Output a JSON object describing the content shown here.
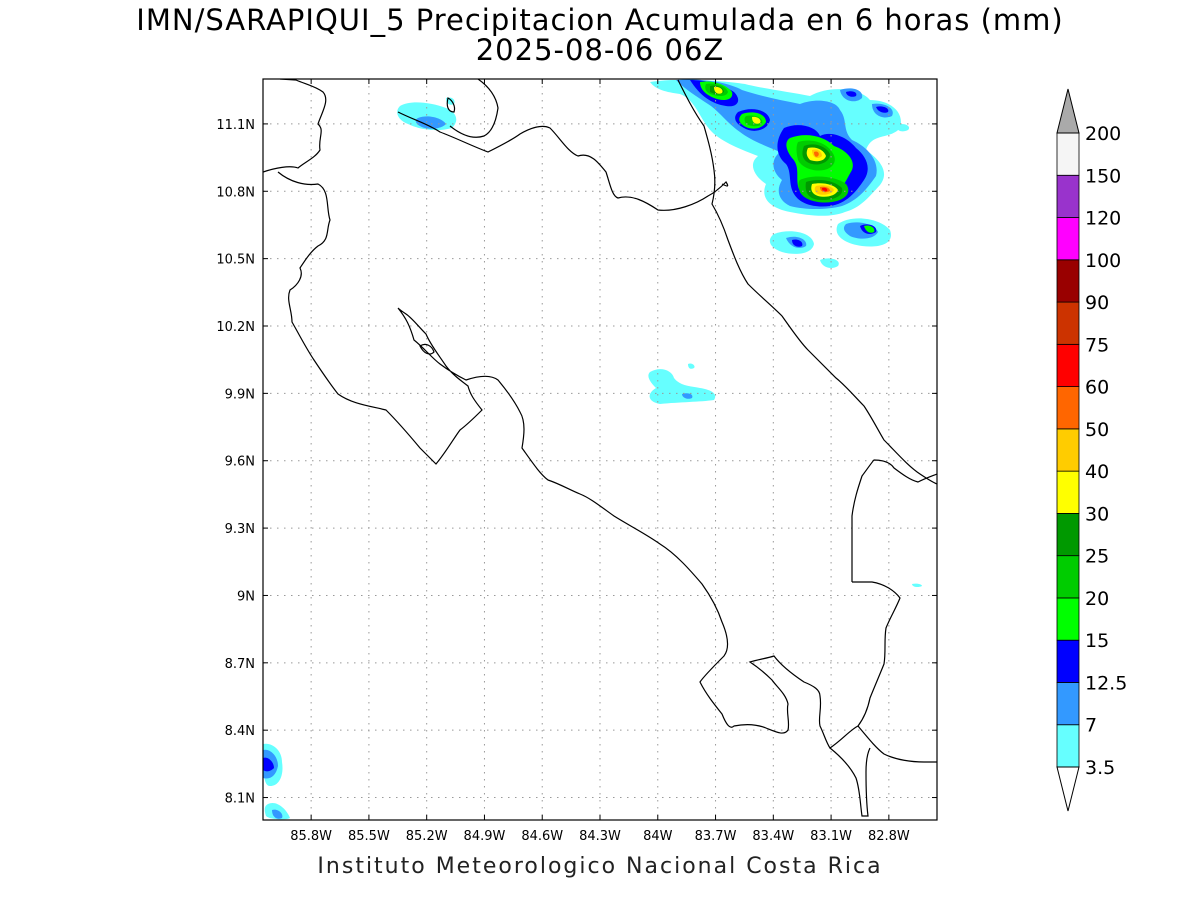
{
  "title": {
    "line1": "IMN/SARAPIQUI_5 Precipitacion Acumulada en 6 horas (mm)",
    "line2": "2025-08-06 06Z"
  },
  "footer": "Instituto Meteorologico Nacional Costa Rica",
  "map": {
    "lon_range": [
      -86.05,
      -82.55
    ],
    "lat_range": [
      8.0,
      11.3
    ],
    "lon_ticks": [
      {
        "value": -85.8,
        "label": "85.8W"
      },
      {
        "value": -85.5,
        "label": "85.5W"
      },
      {
        "value": -85.2,
        "label": "85.2W"
      },
      {
        "value": -84.9,
        "label": "84.9W"
      },
      {
        "value": -84.6,
        "label": "84.6W"
      },
      {
        "value": -84.3,
        "label": "84.3W"
      },
      {
        "value": -84.0,
        "label": "84W"
      },
      {
        "value": -83.7,
        "label": "83.7W"
      },
      {
        "value": -83.4,
        "label": "83.4W"
      },
      {
        "value": -83.1,
        "label": "83.1W"
      },
      {
        "value": -82.8,
        "label": "82.8W"
      }
    ],
    "lat_ticks": [
      {
        "value": 11.1,
        "label": "11.1N"
      },
      {
        "value": 10.8,
        "label": "10.8N"
      },
      {
        "value": 10.5,
        "label": "10.5N"
      },
      {
        "value": 10.2,
        "label": "10.2N"
      },
      {
        "value": 9.9,
        "label": "9.9N"
      },
      {
        "value": 9.6,
        "label": "9.6N"
      },
      {
        "value": 9.3,
        "label": "9.3N"
      },
      {
        "value": 9.0,
        "label": "9N"
      },
      {
        "value": 8.7,
        "label": "8.7N"
      },
      {
        "value": 8.4,
        "label": "8.4N"
      },
      {
        "value": 8.1,
        "label": "8.1N"
      }
    ],
    "grid": "dotted"
  },
  "colorbar": {
    "unit": "mm",
    "levels": [
      {
        "label": "3.5",
        "color": "#66ffff"
      },
      {
        "label": "7",
        "color": "#3399ff"
      },
      {
        "label": "12.5",
        "color": "#0000ff"
      },
      {
        "label": "15",
        "color": "#00ff00"
      },
      {
        "label": "20",
        "color": "#00cc00"
      },
      {
        "label": "25",
        "color": "#009900"
      },
      {
        "label": "30",
        "color": "#ffff00"
      },
      {
        "label": "40",
        "color": "#ffcc00"
      },
      {
        "label": "50",
        "color": "#ff6600"
      },
      {
        "label": "60",
        "color": "#ff0000"
      },
      {
        "label": "75",
        "color": "#cc3300"
      },
      {
        "label": "90",
        "color": "#990000"
      },
      {
        "label": "100",
        "color": "#ff00ff"
      },
      {
        "label": "120",
        "color": "#9933cc"
      },
      {
        "label": "150",
        "color": "#f5f5f5"
      },
      {
        "label": "200",
        "color": "#aaaaaa"
      }
    ],
    "colors_between_labels": [
      "#66ffff",
      "#3399ff",
      "#0000ff",
      "#00ff00",
      "#00cc00",
      "#009900",
      "#ffff00",
      "#ffcc00",
      "#ff6600",
      "#ff0000",
      "#cc3300",
      "#990000",
      "#ff00ff",
      "#9933cc",
      "#f5f5f5"
    ],
    "below_min_color": "#ffffff",
    "above_max_color": "#aaaaaa"
  },
  "precip_cells": [
    {
      "lon": -83.15,
      "lat": 10.96,
      "peak_mm": 60
    },
    {
      "lon": -83.1,
      "lat": 10.8,
      "peak_mm": 75
    },
    {
      "lon": -83.58,
      "lat": 11.24,
      "peak_mm": 40
    },
    {
      "lon": -83.4,
      "lat": 11.12,
      "peak_mm": 40
    },
    {
      "lon": -82.9,
      "lat": 11.23,
      "peak_mm": 25
    },
    {
      "lon": -82.85,
      "lat": 10.64,
      "peak_mm": 25
    },
    {
      "lon": -83.2,
      "lat": 10.56,
      "peak_mm": 15
    },
    {
      "lon": -82.8,
      "lat": 11.16,
      "peak_mm": 20
    },
    {
      "lon": -83.95,
      "lat": 9.92,
      "peak_mm": 7
    },
    {
      "lon": -85.15,
      "lat": 11.1,
      "peak_mm": 12.5
    },
    {
      "lon": -86.0,
      "lat": 8.25,
      "peak_mm": 12.5
    }
  ]
}
